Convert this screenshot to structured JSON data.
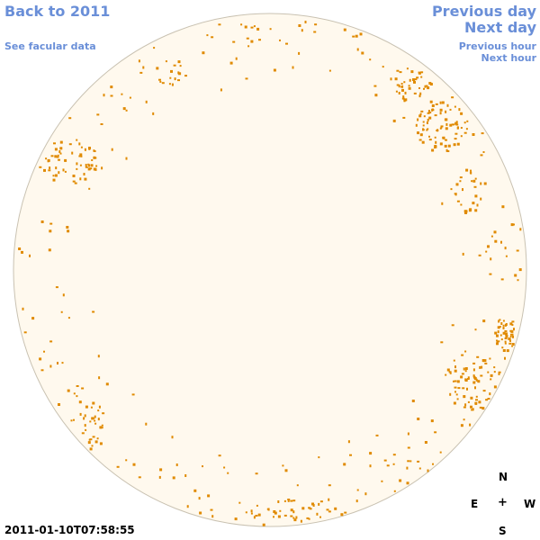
{
  "nav": {
    "back_label": "Back to 2011",
    "facular_label": "See facular data",
    "prev_day_label": "Previous day",
    "next_day_label": "Next day",
    "prev_hour_label": "Previous hour",
    "next_hour_label": "Next hour"
  },
  "timestamp": "2011-01-10T07:58:55",
  "compass": {
    "north": "N",
    "east": "E",
    "center": "+",
    "west": "W",
    "south": "S"
  },
  "colors": {
    "link": "#6a8fd8",
    "disk_fill": "#fff9ee",
    "disk_stroke": "#c9c2b2",
    "facula": "#e08a00"
  }
}
